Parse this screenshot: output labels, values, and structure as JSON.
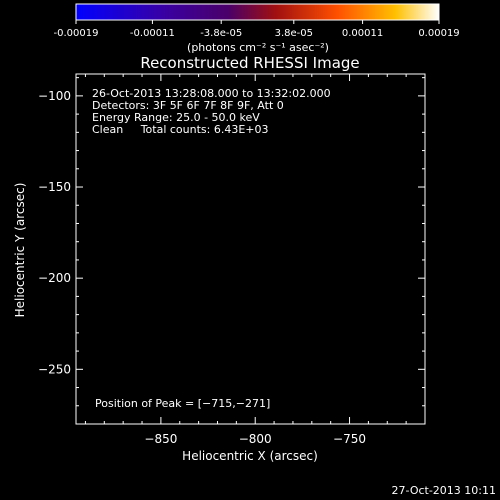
{
  "colorbar": {
    "ticks": [
      "-0.00019",
      "-0.00011",
      "-3.8e-05",
      "3.8e-05",
      "0.00011",
      "0.00019"
    ],
    "unit_label": "(photons cm⁻² s⁻¹ asec⁻²)",
    "range": [
      -0.00019,
      0.00019
    ]
  },
  "chart_data": {
    "type": "heatmap",
    "title": "Reconstructed RHESSI Image",
    "xlabel": "Heliocentric X (arcsec)",
    "ylabel": "Heliocentric Y (arcsec)",
    "xlim": [
      -895,
      -710
    ],
    "ylim": [
      -280,
      -88
    ],
    "x_ticks": [
      -850,
      -800,
      -750
    ],
    "y_ticks": [
      -100,
      -150,
      -200,
      -250
    ],
    "x_tick_labels": [
      "−850",
      "−800",
      "−750"
    ],
    "y_tick_labels": [
      "−100",
      "−150",
      "−200",
      "−250"
    ],
    "peak": [
      -715,
      -271
    ],
    "annotations": [
      "26-Oct-2013 13:28:08.000 to 13:32:02.000",
      "Detectors: 3F 5F 6F 7F 8F 9F, Att 0",
      "Energy Range: 25.0 - 50.0 keV",
      "Clean     Total counts: 6.43E+03"
    ],
    "peak_label": "Position of Peak = [−715,−271]"
  },
  "timestamp": "27-Oct-2013 10:11"
}
